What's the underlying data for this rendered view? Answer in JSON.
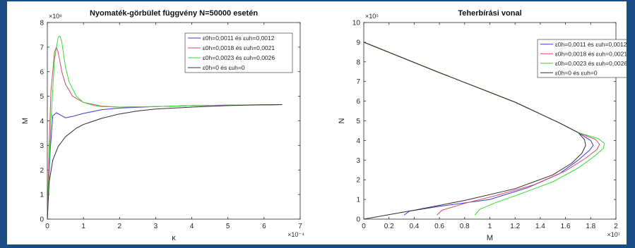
{
  "colors": {
    "frame": "#1a4c86",
    "series": [
      "#3a3ad6",
      "#d24a6a",
      "#2ee02e",
      "#3c2a2a"
    ]
  },
  "chart_data": [
    {
      "type": "line",
      "title": "Nyomaték-görbület függvény N=50000 esetén",
      "xlabel": "κ",
      "ylabel": "M",
      "x_exponent": "×10⁻⁴",
      "y_exponent": "×10⁶",
      "xlim": [
        0,
        7
      ],
      "ylim": [
        0,
        8
      ],
      "xticks": [
        0,
        1,
        2,
        3,
        4,
        5,
        6,
        7
      ],
      "yticks": [
        0,
        1,
        2,
        3,
        4,
        5,
        6,
        7,
        8
      ],
      "grid": false,
      "legend_position": "top-right",
      "series": [
        {
          "name": "ε0h=0,0011 és εuh=0,0012",
          "x": [
            0,
            0.08,
            0.15,
            0.25,
            0.35,
            0.5,
            0.7,
            1.0,
            1.5,
            2.0,
            3.0,
            4.0,
            5.0,
            6.0,
            6.5
          ],
          "y": [
            0,
            2.8,
            4.2,
            4.33,
            4.25,
            4.12,
            4.18,
            4.3,
            4.45,
            4.52,
            4.58,
            4.62,
            4.64,
            4.65,
            4.66
          ]
        },
        {
          "name": "ε0h=0,0018 és εuh=0,0021",
          "x": [
            0,
            0.05,
            0.1,
            0.2,
            0.25,
            0.3,
            0.4,
            0.5,
            0.7,
            1.0,
            1.5,
            2.0,
            3.0,
            4.0,
            5.0,
            6.5
          ],
          "y": [
            0,
            3.0,
            5.2,
            6.8,
            7.0,
            6.8,
            6.0,
            5.5,
            5.0,
            4.75,
            4.6,
            4.56,
            4.58,
            4.62,
            4.64,
            4.66
          ]
        },
        {
          "name": "ε0h=0,0023 és εuh=0,0026",
          "x": [
            0,
            0.1,
            0.2,
            0.3,
            0.35,
            0.4,
            0.5,
            0.6,
            0.8,
            1.0,
            1.3,
            1.5,
            2.0,
            3.0,
            4.0,
            5.0,
            6.5
          ],
          "y": [
            0,
            4.0,
            6.5,
            7.4,
            7.45,
            7.2,
            6.2,
            5.6,
            5.0,
            4.75,
            4.62,
            4.58,
            4.56,
            4.58,
            4.62,
            4.64,
            4.66
          ]
        },
        {
          "name": "ε0h=0 és εuh=0",
          "x": [
            0,
            0.05,
            0.15,
            0.3,
            0.5,
            0.8,
            1.0,
            1.5,
            2.0,
            2.5,
            3.0,
            4.0,
            5.0,
            6.0,
            6.5
          ],
          "y": [
            0,
            1.5,
            2.4,
            2.95,
            3.35,
            3.7,
            3.85,
            4.1,
            4.28,
            4.4,
            4.48,
            4.56,
            4.62,
            4.65,
            4.66
          ]
        }
      ]
    },
    {
      "type": "line",
      "title": "Teherbírási vonal",
      "xlabel": "M",
      "ylabel": "N",
      "x_exponent": "×10⁷",
      "y_exponent": "×10⁵",
      "xlim": [
        0,
        2
      ],
      "ylim": [
        0,
        10
      ],
      "xticks": [
        0,
        0.2,
        0.4,
        0.6,
        0.8,
        1,
        1.2,
        1.4,
        1.6,
        1.8,
        2
      ],
      "yticks": [
        0,
        1,
        2,
        3,
        4,
        5,
        6,
        7,
        8,
        9,
        10
      ],
      "grid": false,
      "legend_position": "top-right",
      "series": [
        {
          "name": "ε0h=0,0011 és εuh=0,0012",
          "x": [
            0.32,
            0.36,
            0.6,
            1.0,
            1.3,
            1.55,
            1.7,
            1.79,
            1.82,
            1.8,
            1.7,
            1.55,
            1.2,
            0.6,
            0.0
          ],
          "y": [
            0.2,
            0.4,
            0.65,
            1.0,
            1.6,
            2.3,
            3.0,
            3.5,
            3.75,
            4.0,
            4.4,
            4.9,
            5.95,
            7.45,
            9.0
          ]
        },
        {
          "name": "ε0h=0,0018 és εuh=0,0021",
          "x": [
            0.58,
            0.62,
            0.8,
            1.05,
            1.35,
            1.6,
            1.76,
            1.85,
            1.87,
            1.84,
            1.7,
            1.55,
            1.2,
            0.6,
            0.0
          ],
          "y": [
            0.2,
            0.45,
            0.8,
            1.2,
            1.75,
            2.45,
            3.1,
            3.55,
            3.8,
            4.05,
            4.4,
            4.9,
            5.95,
            7.45,
            9.0
          ]
        },
        {
          "name": "ε0h=0,0023 és εuh=0,0026",
          "x": [
            0.88,
            0.92,
            1.05,
            1.25,
            1.5,
            1.7,
            1.83,
            1.9,
            1.91,
            1.86,
            1.7,
            1.55,
            1.2,
            0.6,
            0.0
          ],
          "y": [
            0.2,
            0.5,
            0.85,
            1.3,
            1.9,
            2.6,
            3.2,
            3.6,
            3.85,
            4.1,
            4.4,
            4.9,
            5.95,
            7.45,
            9.0
          ]
        },
        {
          "name": "ε0h=0 és εuh=0",
          "x": [
            0.0,
            0.4,
            0.8,
            1.2,
            1.5,
            1.65,
            1.73,
            1.76,
            1.75,
            1.7,
            1.55,
            1.2,
            0.6,
            0.0
          ],
          "y": [
            0.0,
            0.45,
            0.95,
            1.55,
            2.25,
            2.85,
            3.35,
            3.75,
            4.05,
            4.4,
            4.9,
            5.95,
            7.45,
            9.0
          ]
        }
      ]
    }
  ]
}
